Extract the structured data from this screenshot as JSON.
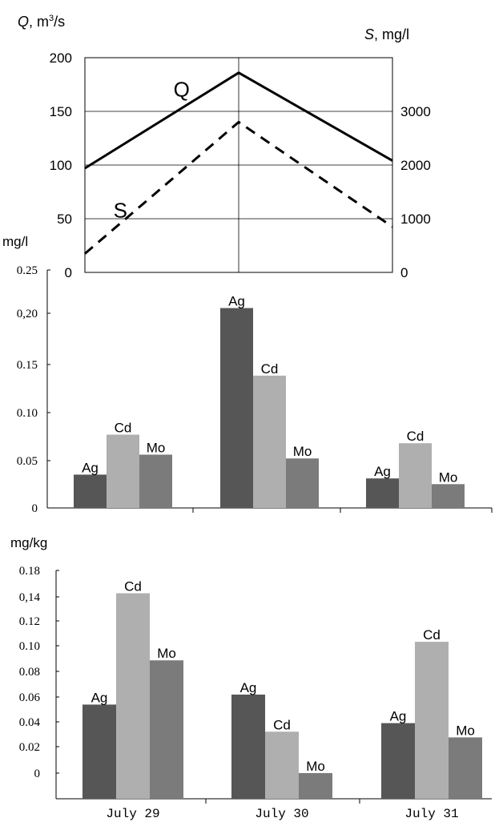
{
  "chart_data": [
    {
      "type": "line",
      "left_axis_label_var": "Q",
      "left_axis_label_unit": ", m",
      "left_axis_label_sup": "3",
      "left_axis_label_tail": "/s",
      "right_axis_label_var": "S",
      "right_axis_label_unit": ", mg/l",
      "y_left_ticks": [
        "200",
        "150",
        "100",
        "50",
        "0"
      ],
      "y_right_ticks": [
        "3000",
        "2000",
        "1000",
        "0"
      ],
      "ylim_left": [
        0,
        200
      ],
      "ylim_right": [
        0,
        4000
      ],
      "x": [
        "July 29",
        "July 30",
        "July 31"
      ],
      "series": [
        {
          "name": "Q",
          "axis": "left",
          "values": [
            97,
            186,
            104
          ],
          "style": "solid"
        },
        {
          "name": "S",
          "axis": "right",
          "values": [
            350,
            2800,
            850
          ],
          "style": "dashed"
        }
      ],
      "grid": true
    },
    {
      "type": "bar",
      "ylabel": "mg/l",
      "y_ticks": [
        "0.25",
        "0,20",
        "0.15",
        "0.10",
        "0.05",
        "0"
      ],
      "ylim": [
        0,
        0.25
      ],
      "categories": [
        "July 29",
        "July 30",
        "July 31"
      ],
      "series": [
        {
          "name": "Ag",
          "color": "#565656",
          "values": [
            0.035,
            0.21,
            0.031
          ]
        },
        {
          "name": "Cd",
          "color": "#afafaf",
          "values": [
            0.077,
            0.139,
            0.068
          ]
        },
        {
          "name": "Mo",
          "color": "#7b7b7b",
          "values": [
            0.056,
            0.052,
            0.025
          ]
        }
      ],
      "grid": false
    },
    {
      "type": "bar",
      "ylabel": "mg/kg",
      "y_ticks": [
        "0.18",
        "0,14",
        "0.12",
        "0.10",
        "0.08",
        "0.06",
        "0.04",
        "0.02",
        "0"
      ],
      "ylim": [
        0,
        0.16
      ],
      "categories": [
        "July 29",
        "July 30",
        "July 31"
      ],
      "series": [
        {
          "name": "Ag",
          "color": "#565656",
          "values": [
            0.066,
            0.073,
            0.053
          ]
        },
        {
          "name": "Cd",
          "color": "#afafaf",
          "values": [
            0.144,
            0.047,
            0.11
          ]
        },
        {
          "name": "Mo",
          "color": "#7b7b7b",
          "values": [
            0.097,
            0.018,
            0.043
          ]
        }
      ],
      "grid": false
    }
  ]
}
